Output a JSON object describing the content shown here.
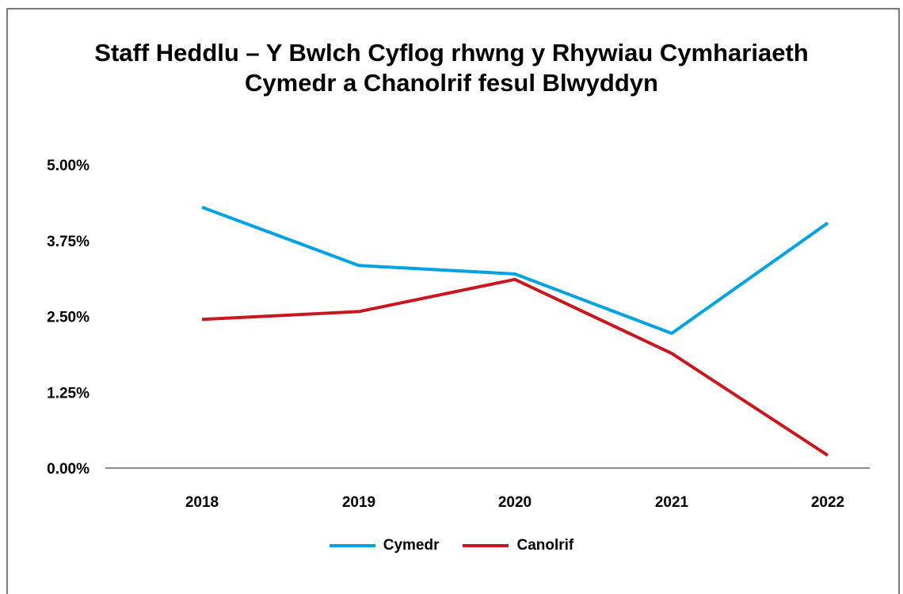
{
  "chart_data": {
    "type": "line",
    "title_lines": [
      "Staff Heddlu – Y Bwlch Cyflog rhwng y Rhywiau Cymhariaeth",
      "Cymedr a Chanolrif fesul Blwyddyn"
    ],
    "categories": [
      "2018",
      "2019",
      "2020",
      "2021",
      "2022"
    ],
    "y_ticks": [
      "0.00%",
      "1.25%",
      "2.50%",
      "3.75%",
      "5.00%"
    ],
    "ylim": [
      0,
      5
    ],
    "grid": false,
    "legend_position": "bottom",
    "series": [
      {
        "name": "Cymedr",
        "color": "#00a3e0",
        "values": [
          4.3,
          3.34,
          3.2,
          2.22,
          4.04
        ]
      },
      {
        "name": "Canolrif",
        "color": "#c8171e",
        "values": [
          2.45,
          2.58,
          3.11,
          1.89,
          0.21
        ]
      }
    ]
  }
}
